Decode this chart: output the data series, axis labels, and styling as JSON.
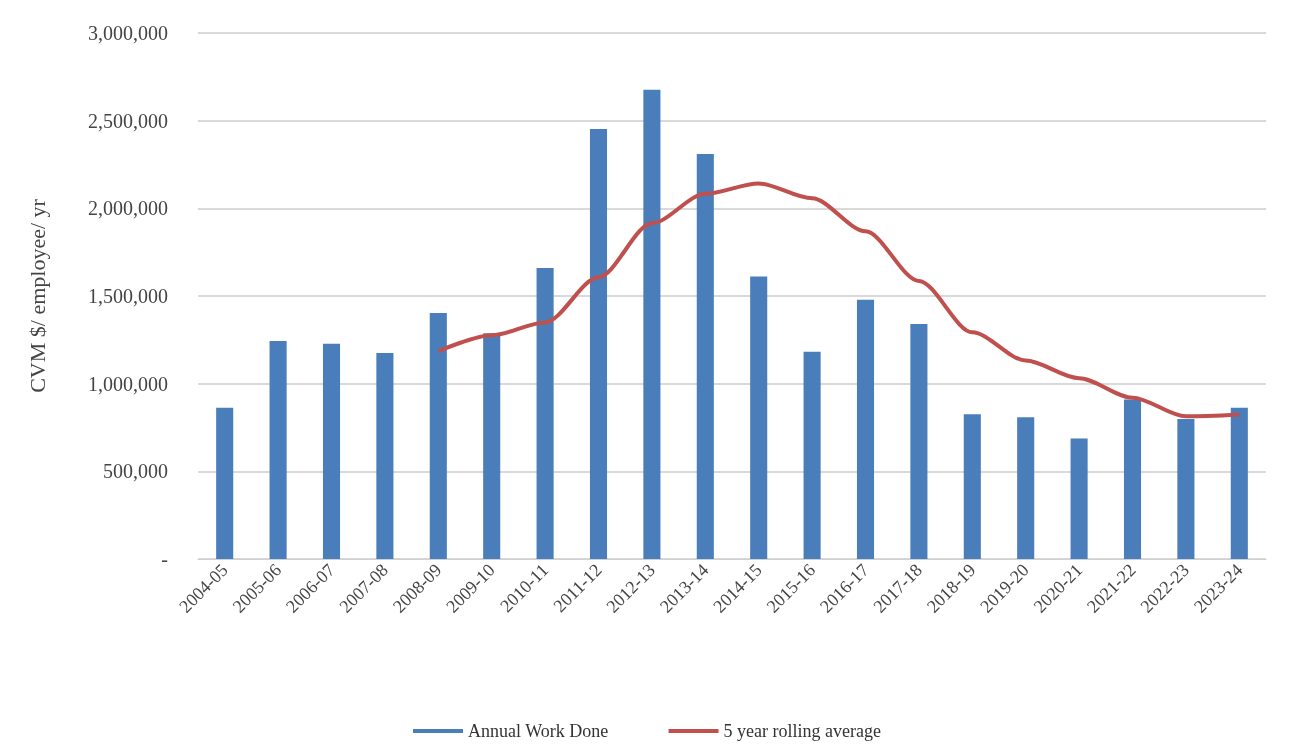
{
  "chart_data": {
    "type": "bar",
    "ylabel": "CVM $/ employee/ yr",
    "categories": [
      "2004-05",
      "2005-06",
      "2006-07",
      "2007-08",
      "2008-09",
      "2009-10",
      "2010-11",
      "2011-12",
      "2012-13",
      "2013-14",
      "2014-15",
      "2015-16",
      "2016-17",
      "2017-18",
      "2018-19",
      "2019-20",
      "2020-21",
      "2021-22",
      "2022-23",
      "2023-24"
    ],
    "series": [
      {
        "name": "Annual Work Done",
        "color": "#4a7ebb",
        "values": [
          863000,
          1244000,
          1228000,
          1175000,
          1403000,
          1288000,
          1659000,
          2452000,
          2677000,
          2310000,
          1611000,
          1182000,
          1479000,
          1340000,
          825000,
          808000,
          687000,
          909000,
          798000,
          863000
        ]
      },
      {
        "name": "5 year rolling average",
        "type": "line",
        "color": "#c0504d",
        "values": [
          null,
          null,
          null,
          null,
          1185000,
          1276000,
          1349000,
          1607000,
          1915000,
          2083000,
          2142000,
          2057000,
          1869000,
          1586000,
          1293000,
          1132000,
          1031000,
          920000,
          814000,
          823000
        ]
      }
    ],
    "ylim": [
      0,
      3000000
    ],
    "yticks": [
      {
        "value": 0,
        "label": "-"
      },
      {
        "value": 500000,
        "label": "500,000"
      },
      {
        "value": 1000000,
        "label": "1,000,000"
      },
      {
        "value": 1500000,
        "label": "1,500,000"
      },
      {
        "value": 2000000,
        "label": "2,000,000"
      },
      {
        "value": 2500000,
        "label": "2,500,000"
      },
      {
        "value": 3000000,
        "label": "3,000,000"
      }
    ],
    "grid": "y",
    "legend": "bottom",
    "marker": "none",
    "line_style": "solid"
  }
}
